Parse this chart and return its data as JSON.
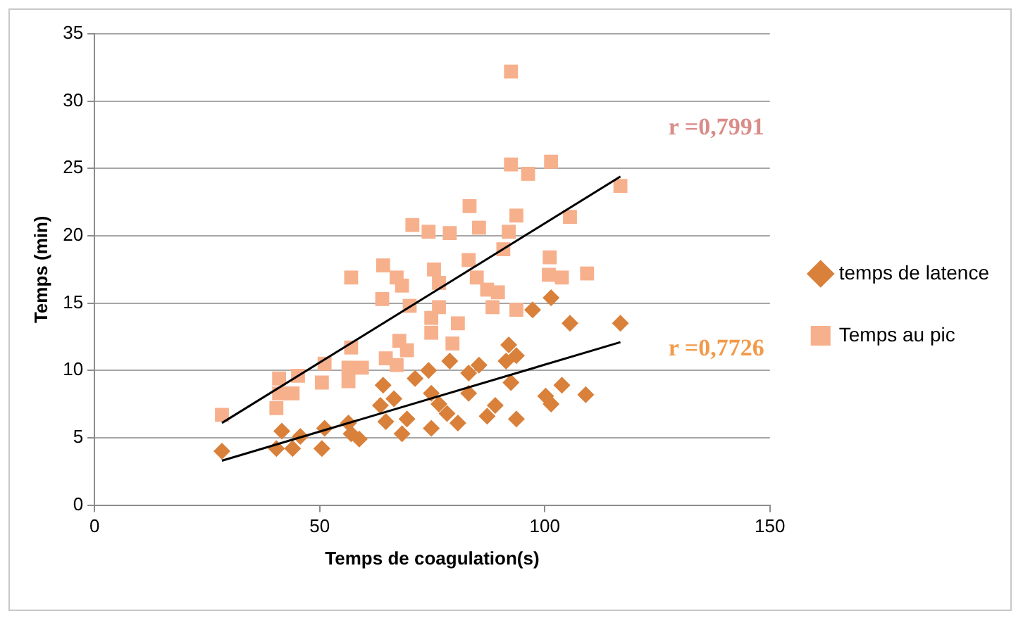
{
  "chart_data": {
    "type": "scatter",
    "xlabel": "Temps de coagulation(s)",
    "ylabel": "Temps (min)",
    "xlim": [
      0,
      150
    ],
    "xticks": [
      0,
      50,
      100,
      150
    ],
    "ylim": [
      0,
      35
    ],
    "yticks": [
      0,
      5,
      10,
      15,
      20,
      25,
      30,
      35
    ],
    "grid": "y",
    "legend": "right",
    "series": [
      {
        "name": "temps de latence",
        "color": "#d9803a",
        "marker": "diamond",
        "x": [
          28.3,
          41.6,
          40.4,
          45.7,
          44.0,
          50.5,
          51.1,
          56.4,
          57.0,
          58.8,
          64.1,
          63.5,
          66.5,
          64.7,
          68.3,
          69.4,
          71.2,
          74.2,
          74.8,
          74.8,
          76.5,
          78.3,
          80.7,
          83.1,
          83.1,
          85.4,
          78.9,
          87.2,
          89.0,
          92.0,
          91.4,
          93.7,
          92.5,
          93.7,
          97.3,
          101.4,
          105.6,
          116.8,
          100.2,
          103.8,
          101.4,
          109.1
        ],
        "values": [
          4.0,
          5.5,
          4.2,
          5.1,
          4.2,
          4.2,
          5.7,
          6.1,
          5.3,
          4.9,
          8.9,
          7.4,
          7.9,
          6.2,
          5.3,
          6.4,
          9.4,
          10.0,
          5.7,
          8.3,
          7.5,
          6.8,
          6.1,
          8.3,
          9.8,
          10.4,
          10.7,
          6.6,
          7.4,
          11.9,
          10.7,
          11.1,
          9.1,
          6.4,
          14.5,
          15.4,
          13.5,
          13.5,
          8.1,
          8.9,
          7.5,
          8.2
        ]
      },
      {
        "name": "Temps au pic",
        "color": "#f7b08c",
        "marker": "square",
        "x": [
          28.3,
          41.0,
          45.2,
          41.0,
          40.4,
          44.0,
          50.5,
          51.1,
          56.4,
          57.0,
          59.4,
          56.4,
          64.7,
          67.7,
          69.4,
          67.1,
          57.0,
          63.9,
          64.1,
          67.1,
          68.3,
          70.0,
          70.6,
          74.2,
          74.8,
          74.8,
          92.5,
          92.5,
          96.3,
          101.4,
          116.8,
          105.6,
          83.3,
          85.4,
          78.9,
          93.7,
          92.0,
          90.8,
          83.1,
          101.1,
          103.8,
          100.9,
          109.4,
          75.4,
          76.5,
          84.9,
          87.2,
          89.6,
          88.4,
          93.7,
          76.5,
          80.7,
          79.5
        ],
        "values": [
          6.7,
          9.4,
          9.6,
          8.3,
          7.2,
          8.3,
          9.1,
          10.5,
          9.2,
          11.7,
          10.2,
          10.2,
          10.9,
          12.2,
          11.5,
          10.4,
          16.9,
          15.3,
          17.8,
          16.9,
          16.3,
          14.8,
          20.8,
          20.3,
          12.8,
          13.9,
          32.2,
          25.3,
          24.6,
          25.5,
          23.7,
          21.4,
          22.2,
          20.6,
          20.2,
          21.5,
          20.3,
          19.0,
          18.2,
          18.4,
          16.9,
          17.1,
          17.2,
          17.5,
          16.5,
          16.9,
          16.0,
          15.8,
          14.7,
          14.5,
          14.7,
          13.5,
          12.0
        ]
      },
      {
        "type": "line",
        "color": "#000000",
        "marker": "none",
        "line_style": "solid",
        "x": [
          28.3,
          116.8
        ],
        "values": [
          3.3,
          12.1
        ]
      },
      {
        "type": "line",
        "color": "#000000",
        "marker": "none",
        "line_style": "solid",
        "x": [
          28.3,
          116.8
        ],
        "values": [
          6.1,
          24.4
        ]
      }
    ],
    "annotations": [
      "r =0,7991",
      "r =0,7726"
    ]
  }
}
